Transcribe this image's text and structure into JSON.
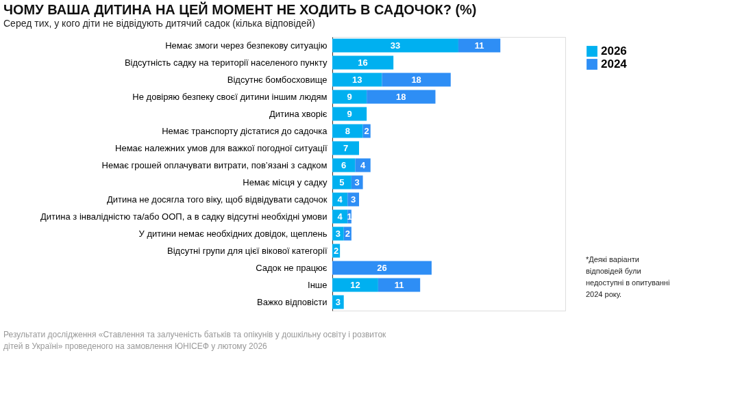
{
  "chart_data": {
    "type": "bar",
    "orientation": "horizontal",
    "stacked": true,
    "title": "ЧОМУ ВАША ДИТИНА НА ЦЕЙ МОМЕНТ НЕ ХОДИТЬ В САДОЧОК? (%)",
    "subtitle": "Серед тих, у кого діти не відвідують дитячий садок (кілька відповідей)",
    "categories": [
      "Немає змоги через безпекову ситуацію",
      "Відсутність садку на території населеного пункту",
      "Відсутнє бомбосховище",
      "Не довіряю безпеку своєї дитини іншим людям",
      "Дитина хворіє",
      "Немає транспорту дістатися до садочка",
      "Немає належних умов для важкої погодної ситуації",
      "Немає грошей оплачувати витрати, пов’язані з садком",
      "Немає місця у садку",
      "Дитина не досягла того віку, щоб відвідувати садочок",
      "Дитина з інвалідністю та/або ООП, а в садку відсутні необхідні умови",
      "У дитини немає необхідних довідок, щеплень",
      "Відсутні групи для цієї вікової категорії",
      "Садок не працює",
      "Інше",
      "Важко відповісти"
    ],
    "series": [
      {
        "name": "2026",
        "color": "#00b0f0",
        "values": [
          33,
          16,
          13,
          9,
          9,
          8,
          7,
          6,
          5,
          4,
          4,
          3,
          2,
          null,
          12,
          3
        ]
      },
      {
        "name": "2024",
        "color": "#2e8ef5",
        "values": [
          11,
          null,
          18,
          18,
          null,
          2,
          null,
          4,
          3,
          3,
          1,
          2,
          null,
          26,
          11,
          null
        ]
      }
    ],
    "xlim": [
      0,
      61
    ],
    "tick_labels": "y",
    "data_labels": true,
    "grid": false,
    "legend": "top right",
    "annotations": [
      "*Деякі варіанти відповідей були недоступні в опитуванні 2024 року.",
      "Результати дослідження «Ставлення та залученість батьків та опікунів у дошкільну освіту і розвиток дітей в Україні» проведеного на замовлення ЮНІСЕФ у лютому 2026"
    ]
  }
}
